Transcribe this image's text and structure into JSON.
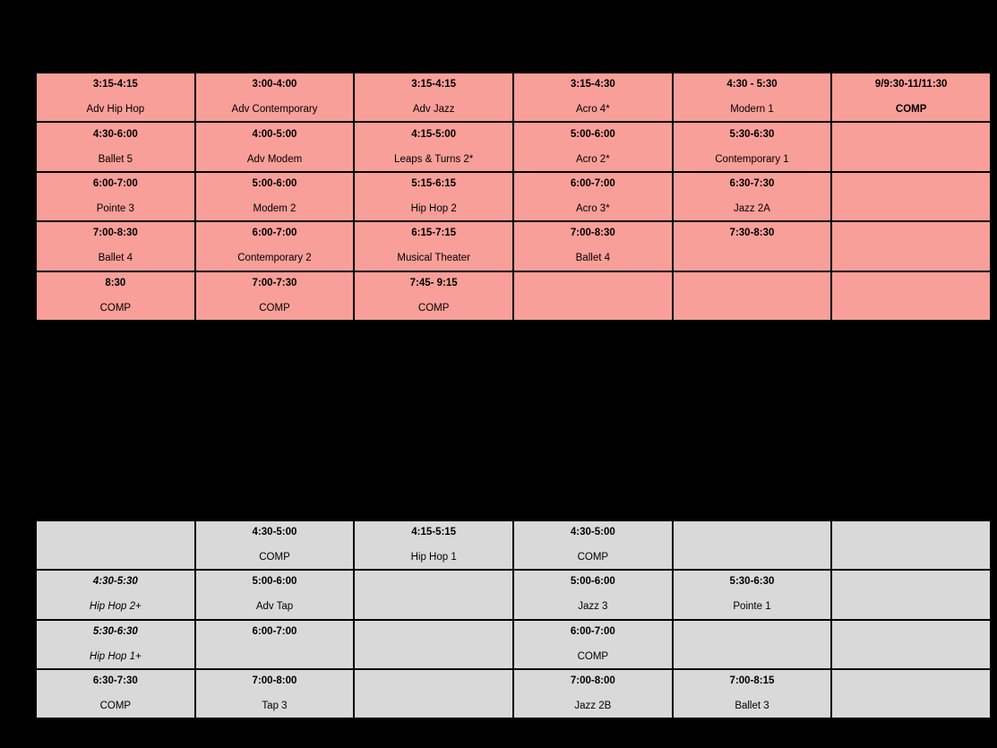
{
  "page": {
    "background_color": "#000000",
    "text_color": "#000000",
    "border_color": "#000000"
  },
  "tables": [
    {
      "id": "schedule-table-top",
      "cell_color": "#f99f99",
      "rows": [
        [
          {
            "time": "3:15-4:15",
            "name": "Adv Hip Hop"
          },
          {
            "time": "3:00-4:00",
            "name": "Adv Contemporary"
          },
          {
            "time": "3:15-4:15",
            "name": "Adv Jazz"
          },
          {
            "time": "3:15-4:30",
            "name": "Acro 4*"
          },
          {
            "time": "4:30 - 5:30",
            "name": "Modern 1"
          },
          {
            "time": "9/9:30-11/11:30",
            "name": "COMP",
            "name_bold": true
          }
        ],
        [
          {
            "time": "4:30-6:00",
            "name": "Ballet 5"
          },
          {
            "time": "4:00-5:00",
            "name": "Adv Modem"
          },
          {
            "time": "4:15-5:00",
            "name": "Leaps & Turns 2*"
          },
          {
            "time": "5:00-6:00",
            "name": "Acro 2*"
          },
          {
            "time": "5:30-6:30",
            "name": "Contemporary 1"
          },
          {
            "time": "",
            "name": ""
          }
        ],
        [
          {
            "time": "6:00-7:00",
            "name": "Pointe 3"
          },
          {
            "time": "5:00-6:00",
            "name": "Modem 2"
          },
          {
            "time": "5:15-6:15",
            "name": "Hip Hop 2"
          },
          {
            "time": "6:00-7:00",
            "name": "Acro 3*"
          },
          {
            "time": "6:30-7:30",
            "name": "Jazz 2A"
          },
          {
            "time": "",
            "name": ""
          }
        ],
        [
          {
            "time": "7:00-8:30",
            "name": "Ballet 4"
          },
          {
            "time": "6:00-7:00",
            "name": "Contemporary 2"
          },
          {
            "time": "6:15-7:15",
            "name": "Musical Theater"
          },
          {
            "time": "7:00-8:30",
            "name": "Ballet 4"
          },
          {
            "time": "7:30-8:30",
            "name": ""
          },
          {
            "time": "",
            "name": ""
          }
        ],
        [
          {
            "time": "8:30",
            "name": "COMP"
          },
          {
            "time": "7:00-7:30",
            "name": "COMP"
          },
          {
            "time": "7:45- 9:15",
            "name": "COMP"
          },
          {
            "time": "",
            "name": ""
          },
          {
            "time": "",
            "name": ""
          },
          {
            "time": "",
            "name": ""
          }
        ]
      ]
    },
    {
      "id": "schedule-table-bottom",
      "cell_color": "#d9d9d9",
      "rows": [
        [
          {
            "time": "",
            "name": ""
          },
          {
            "time": "4:30-5:00",
            "name": "COMP"
          },
          {
            "time": "4:15-5:15",
            "name": "Hip Hop 1"
          },
          {
            "time": "4:30-5:00",
            "name": "COMP"
          },
          {
            "time": "",
            "name": ""
          },
          {
            "time": "",
            "name": ""
          }
        ],
        [
          {
            "time": "4:30-5:30",
            "name": "Hip Hop 2+",
            "italic": true
          },
          {
            "time": "5:00-6:00",
            "name": "Adv Tap"
          },
          {
            "time": "",
            "name": ""
          },
          {
            "time": "5:00-6:00",
            "name": "Jazz 3"
          },
          {
            "time": "5:30-6:30",
            "name": "Pointe 1"
          },
          {
            "time": "",
            "name": ""
          }
        ],
        [
          {
            "time": "5:30-6:30",
            "name": "Hip Hop 1+",
            "italic": true
          },
          {
            "time": "6:00-7:00",
            "name": ""
          },
          {
            "time": "",
            "name": ""
          },
          {
            "time": "6:00-7:00",
            "name": "COMP"
          },
          {
            "time": "",
            "name": ""
          },
          {
            "time": "",
            "name": ""
          }
        ],
        [
          {
            "time": "6:30-7:30",
            "name": "COMP"
          },
          {
            "time": "7:00-8:00",
            "name": "Tap 3"
          },
          {
            "time": "",
            "name": ""
          },
          {
            "time": "7:00-8:00",
            "name": "Jazz 2B"
          },
          {
            "time": "7:00-8:15",
            "name": "Ballet 3"
          },
          {
            "time": "",
            "name": ""
          }
        ]
      ]
    }
  ]
}
